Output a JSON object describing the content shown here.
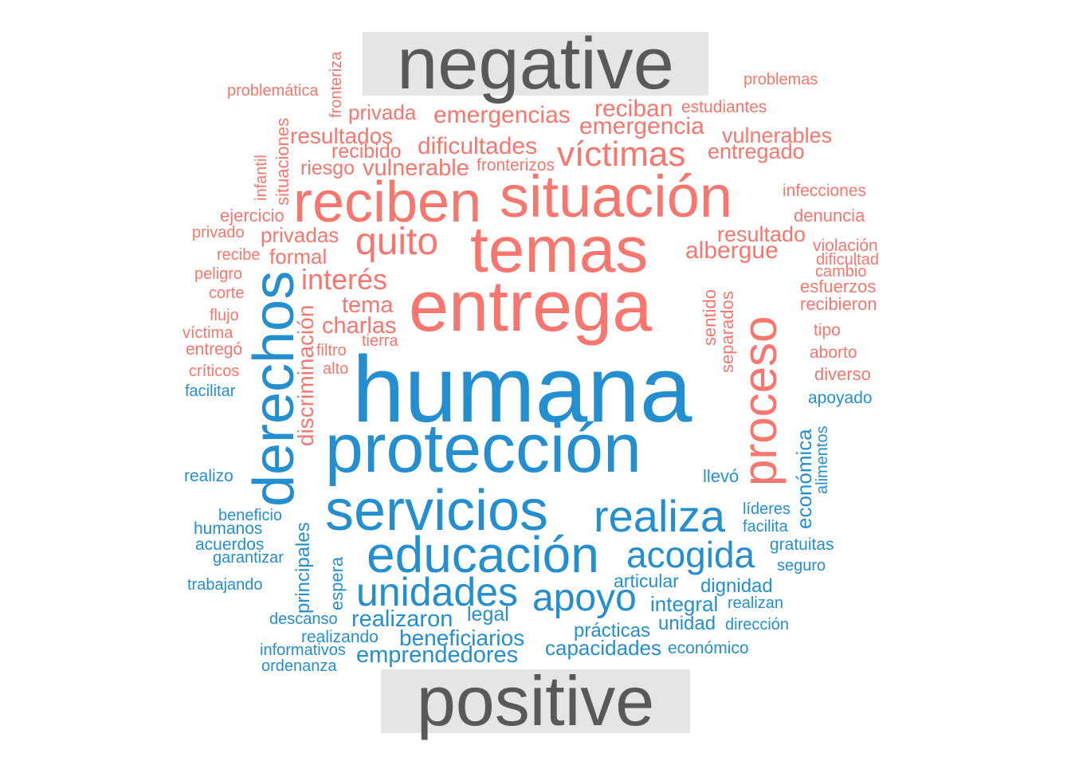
{
  "colors": {
    "negative": "#f8766d",
    "positive": "#238fd1",
    "label_text": "#595959",
    "label_bg": "#e5e5e5"
  },
  "labels": {
    "negative": "negative",
    "positive": "positive"
  },
  "words": [
    {
      "text": "negative_placeholder_skip",
      "group": "skip"
    },
    {
      "text": "problemática",
      "group": "negative"
    },
    {
      "text": "fronteriza",
      "group": "negative"
    },
    {
      "text": "problemas",
      "group": "negative"
    },
    {
      "text": "privada",
      "group": "negative"
    },
    {
      "text": "emergencias",
      "group": "negative"
    },
    {
      "text": "reciban",
      "group": "negative"
    },
    {
      "text": "estudiantes",
      "group": "negative"
    },
    {
      "text": "emergencia",
      "group": "negative"
    },
    {
      "text": "resultados",
      "group": "negative"
    },
    {
      "text": "situaciones",
      "group": "negative"
    },
    {
      "text": "vulnerables",
      "group": "negative"
    },
    {
      "text": "dificultades",
      "group": "negative"
    },
    {
      "text": "recibido",
      "group": "negative"
    },
    {
      "text": "entregado",
      "group": "negative"
    },
    {
      "text": "víctimas",
      "group": "negative"
    },
    {
      "text": "riesgo",
      "group": "negative"
    },
    {
      "text": "vulnerable",
      "group": "negative"
    },
    {
      "text": "fronterizos",
      "group": "negative"
    },
    {
      "text": "infantil",
      "group": "negative"
    },
    {
      "text": "infecciones",
      "group": "negative"
    },
    {
      "text": "reciben",
      "group": "negative"
    },
    {
      "text": "situación",
      "group": "negative"
    },
    {
      "text": "ejercicio",
      "group": "negative"
    },
    {
      "text": "denuncia",
      "group": "negative"
    },
    {
      "text": "privado",
      "group": "negative"
    },
    {
      "text": "privadas",
      "group": "negative"
    },
    {
      "text": "resultado",
      "group": "negative"
    },
    {
      "text": "quito",
      "group": "negative"
    },
    {
      "text": "temas",
      "group": "negative"
    },
    {
      "text": "violación",
      "group": "negative"
    },
    {
      "text": "recibe",
      "group": "negative"
    },
    {
      "text": "formal",
      "group": "negative"
    },
    {
      "text": "albergue",
      "group": "negative"
    },
    {
      "text": "dificultad",
      "group": "negative"
    },
    {
      "text": "peligro",
      "group": "negative"
    },
    {
      "text": "cambio",
      "group": "negative"
    },
    {
      "text": "interés",
      "group": "negative"
    },
    {
      "text": "esfuerzos",
      "group": "negative"
    },
    {
      "text": "corte",
      "group": "negative"
    },
    {
      "text": "entrega",
      "group": "negative"
    },
    {
      "text": "recibieron",
      "group": "negative"
    },
    {
      "text": "sentido",
      "group": "negative"
    },
    {
      "text": "tema",
      "group": "negative"
    },
    {
      "text": "flujo",
      "group": "negative"
    },
    {
      "text": "proceso",
      "group": "negative"
    },
    {
      "text": "charlas",
      "group": "negative"
    },
    {
      "text": "separados",
      "group": "negative"
    },
    {
      "text": "tipo",
      "group": "negative"
    },
    {
      "text": "víctima",
      "group": "negative"
    },
    {
      "text": "tierra",
      "group": "negative"
    },
    {
      "text": "entregó",
      "group": "negative"
    },
    {
      "text": "filtro",
      "group": "negative"
    },
    {
      "text": "aborto",
      "group": "negative"
    },
    {
      "text": "discriminación",
      "group": "negative"
    },
    {
      "text": "críticos",
      "group": "negative"
    },
    {
      "text": "alto",
      "group": "negative"
    },
    {
      "text": "diverso",
      "group": "negative"
    },
    {
      "text": "facilitar",
      "group": "positive"
    },
    {
      "text": "humana",
      "group": "positive"
    },
    {
      "text": "apoyado",
      "group": "positive"
    },
    {
      "text": "derechos",
      "group": "positive"
    },
    {
      "text": "protección",
      "group": "positive"
    },
    {
      "text": "económica",
      "group": "positive"
    },
    {
      "text": "alimentos",
      "group": "positive"
    },
    {
      "text": "realizo",
      "group": "positive"
    },
    {
      "text": "llevó",
      "group": "positive"
    },
    {
      "text": "servicios",
      "group": "positive"
    },
    {
      "text": "realiza",
      "group": "positive"
    },
    {
      "text": "líderes",
      "group": "positive"
    },
    {
      "text": "beneficio",
      "group": "positive"
    },
    {
      "text": "facilita",
      "group": "positive"
    },
    {
      "text": "humanos",
      "group": "positive"
    },
    {
      "text": "principales",
      "group": "positive"
    },
    {
      "text": "educación",
      "group": "positive"
    },
    {
      "text": "acogida",
      "group": "positive"
    },
    {
      "text": "gratuitas",
      "group": "positive"
    },
    {
      "text": "acuerdos",
      "group": "positive"
    },
    {
      "text": "garantizar",
      "group": "positive"
    },
    {
      "text": "seguro",
      "group": "positive"
    },
    {
      "text": "espera",
      "group": "positive"
    },
    {
      "text": "articular",
      "group": "positive"
    },
    {
      "text": "trabajando",
      "group": "positive"
    },
    {
      "text": "dignidad",
      "group": "positive"
    },
    {
      "text": "unidades",
      "group": "positive"
    },
    {
      "text": "apoyo",
      "group": "positive"
    },
    {
      "text": "realizan",
      "group": "positive"
    },
    {
      "text": "integral",
      "group": "positive"
    },
    {
      "text": "descanso",
      "group": "positive"
    },
    {
      "text": "legal",
      "group": "positive"
    },
    {
      "text": "realizaron",
      "group": "positive"
    },
    {
      "text": "unidad",
      "group": "positive"
    },
    {
      "text": "dirección",
      "group": "positive"
    },
    {
      "text": "prácticas",
      "group": "positive"
    },
    {
      "text": "realizando",
      "group": "positive"
    },
    {
      "text": "beneficiarios",
      "group": "positive"
    },
    {
      "text": "informativos",
      "group": "positive"
    },
    {
      "text": "capacidades",
      "group": "positive"
    },
    {
      "text": "económico",
      "group": "positive"
    },
    {
      "text": "emprendedores",
      "group": "positive"
    },
    {
      "text": "ordenanza",
      "group": "positive"
    }
  ]
}
